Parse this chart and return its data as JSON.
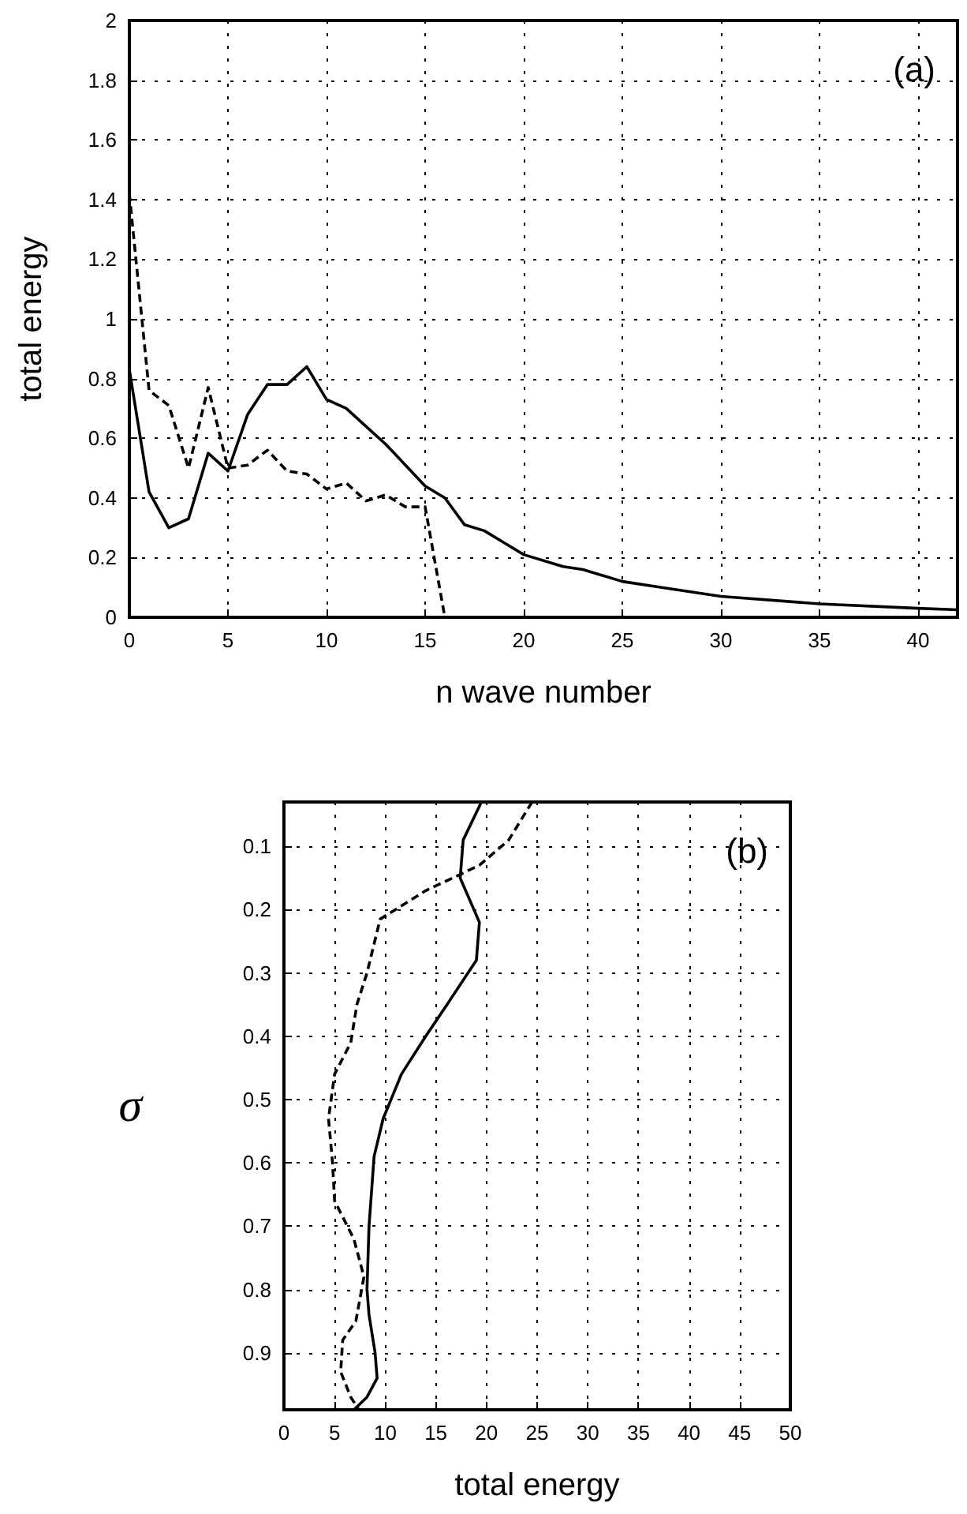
{
  "chart_data": [
    {
      "type": "line",
      "xlabel": "n wave number",
      "ylabel": "total energy",
      "annotations": [
        "(a)"
      ],
      "xlim": [
        0,
        42
      ],
      "xticks": [
        0,
        5,
        10,
        15,
        20,
        25,
        30,
        35,
        40
      ],
      "ylim": [
        0,
        2
      ],
      "yticks": [
        0,
        0.2,
        0.4,
        0.6,
        0.8,
        1,
        1.2,
        1.4,
        1.6,
        1.8,
        2
      ],
      "grid": true,
      "marker": "none",
      "series": [
        {
          "color": "#000000",
          "line_style": "solid",
          "x": [
            0,
            1,
            2,
            3,
            4,
            5,
            6,
            7,
            8,
            9,
            10,
            11,
            12,
            13,
            14,
            15,
            16,
            17,
            18,
            19,
            20,
            22,
            23,
            25,
            27,
            30,
            35,
            40,
            42
          ],
          "values": [
            0.83,
            0.42,
            0.3,
            0.33,
            0.55,
            0.49,
            0.68,
            0.78,
            0.78,
            0.84,
            0.73,
            0.7,
            0.64,
            0.58,
            0.51,
            0.44,
            0.4,
            0.31,
            0.29,
            0.25,
            0.21,
            0.17,
            0.16,
            0.12,
            0.1,
            0.07,
            0.045,
            0.03,
            0.025
          ]
        },
        {
          "color": "#000000",
          "line_style": "dashed",
          "x": [
            0,
            1,
            2,
            3,
            4,
            5,
            6,
            7,
            8,
            9,
            10,
            11,
            12,
            13,
            14,
            15,
            16
          ],
          "values": [
            1.42,
            0.76,
            0.71,
            0.5,
            0.77,
            0.5,
            0.51,
            0.56,
            0.49,
            0.48,
            0.43,
            0.45,
            0.39,
            0.41,
            0.37,
            0.37,
            0
          ]
        }
      ]
    },
    {
      "type": "line",
      "xlabel": "total energy",
      "ylabel": "σ",
      "annotations": [
        "(b)"
      ],
      "xlim": [
        0,
        50
      ],
      "xticks": [
        0,
        5,
        10,
        15,
        20,
        25,
        30,
        35,
        40,
        45,
        50
      ],
      "ylim": [
        0.99,
        0.03
      ],
      "yticks": [
        0.1,
        0.2,
        0.3,
        0.4,
        0.5,
        0.6,
        0.7,
        0.8,
        0.9
      ],
      "grid": true,
      "marker": "none",
      "series": [
        {
          "color": "#000000",
          "line_style": "solid",
          "x": [
            19.5,
            17.7,
            17.4,
            19.3,
            19.0,
            16.1,
            14.0,
            11.6,
            9.8,
            8.9,
            8.4,
            8.2,
            8.4,
            9.0,
            9.2,
            8.2,
            6.9
          ],
          "values": [
            0.03,
            0.09,
            0.15,
            0.22,
            0.28,
            0.35,
            0.4,
            0.46,
            0.53,
            0.59,
            0.7,
            0.8,
            0.84,
            0.9,
            0.94,
            0.97,
            0.99
          ]
        },
        {
          "color": "#000000",
          "line_style": "dashed",
          "x": [
            24.5,
            22.2,
            19.3,
            14.0,
            9.5,
            8.2,
            7.2,
            6.6,
            5.0,
            4.4,
            4.8,
            5.0,
            6.9,
            7.9,
            7.1,
            5.8,
            5.6,
            6.6,
            7.4
          ],
          "values": [
            0.03,
            0.09,
            0.13,
            0.17,
            0.215,
            0.3,
            0.35,
            0.41,
            0.46,
            0.53,
            0.6,
            0.66,
            0.72,
            0.78,
            0.85,
            0.88,
            0.93,
            0.97,
            0.99
          ]
        }
      ]
    }
  ]
}
